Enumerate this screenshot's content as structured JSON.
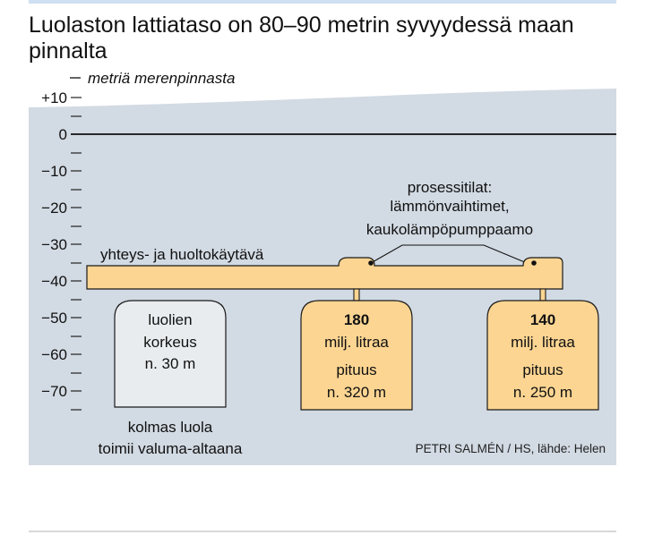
{
  "title": "Luolaston lattiataso on 80–90 metrin syvyydessä maan pinnalta",
  "axis_unit_label": "metriä merenpinnasta",
  "axis_ticks": [
    "+10",
    "0",
    "−10",
    "−20",
    "−30",
    "−40",
    "−50",
    "−60",
    "−70"
  ],
  "tunnel_label": "yhteys- ja huoltokäytävä",
  "process_label": [
    "prosessitilat:",
    "lämmönvaihtimet,",
    "kaukolämpöpumppaamo"
  ],
  "cave_height": {
    "lines": [
      "luolien",
      "korkeus",
      "n. 30 m"
    ]
  },
  "third_cave_caption": [
    "kolmas luola",
    "toimii valuma-altaana"
  ],
  "cave_1": {
    "volume": "180",
    "unit": "milj. litraa",
    "length_label": "pituus",
    "length": "n. 320 m"
  },
  "cave_2": {
    "volume": "140",
    "unit": "milj. litraa",
    "length_label": "pituus",
    "length": "n. 250 m"
  },
  "credit": "PETRI SALMÉN / HS, lähde: Helen",
  "colors": {
    "ground": "#d2dae3",
    "storage": "#fcd592",
    "third_cave": "#e8ecef",
    "outline": "#1a1a1a",
    "topbar": "#cfe0f2"
  }
}
